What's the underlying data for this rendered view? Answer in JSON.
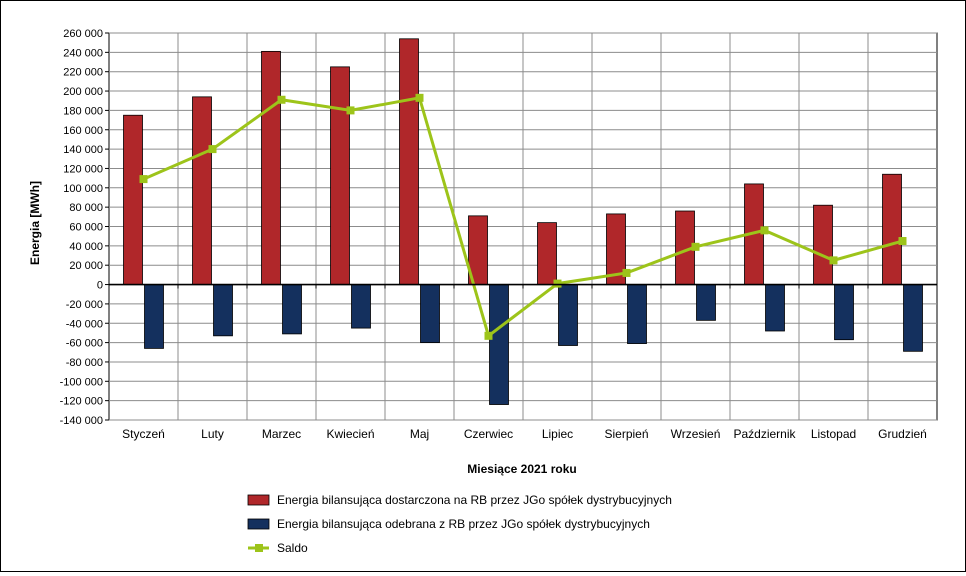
{
  "chart_data": {
    "type": "bar",
    "ylabel": "Energia [MWh]",
    "xlabel": "Miesiące 2021  roku",
    "ylim": [
      -140000,
      260000
    ],
    "ytick_step": 20000,
    "ytick_labels": [
      "260 000",
      "240 000",
      "220 000",
      "200 000",
      "180 000",
      "160 000",
      "140 000",
      "120 000",
      "100 000",
      "80 000",
      "60 000",
      "40 000",
      "20 000",
      "0",
      "-20 000",
      "-40 000",
      "-60 000",
      "-80 000",
      "-100 000",
      "-120 000",
      "-140 000"
    ],
    "grid": true,
    "legend_position": "bottom",
    "categories": [
      "Styczeń",
      "Luty",
      "Marzec",
      "Kwiecień",
      "Maj",
      "Czerwiec",
      "Lipiec",
      "Sierpień",
      "Wrzesień",
      "Październik",
      "Listopad",
      "Grudzień"
    ],
    "series": [
      {
        "name": "Energia bilansująca dostarczona na RB przez JGo spółek dystrybucyjnych",
        "kind": "bar",
        "color": "#b0272a",
        "values": [
          175000,
          194000,
          241000,
          225000,
          254000,
          71000,
          64000,
          73000,
          76000,
          104000,
          82000,
          114000
        ]
      },
      {
        "name": "Energia bilansująca odebrana z RB przez JGo spółek dystrybucyjnych",
        "kind": "bar",
        "color": "#14305e",
        "values": [
          -66000,
          -53000,
          -51000,
          -45000,
          -60000,
          -124000,
          -63000,
          -61000,
          -37000,
          -48000,
          -57000,
          -69000
        ]
      },
      {
        "name": "Saldo",
        "kind": "line",
        "color": "#9dc41a",
        "values": [
          109000,
          140000,
          191000,
          180000,
          193000,
          -53000,
          1000,
          12000,
          39000,
          56000,
          25000,
          45000
        ]
      }
    ]
  }
}
